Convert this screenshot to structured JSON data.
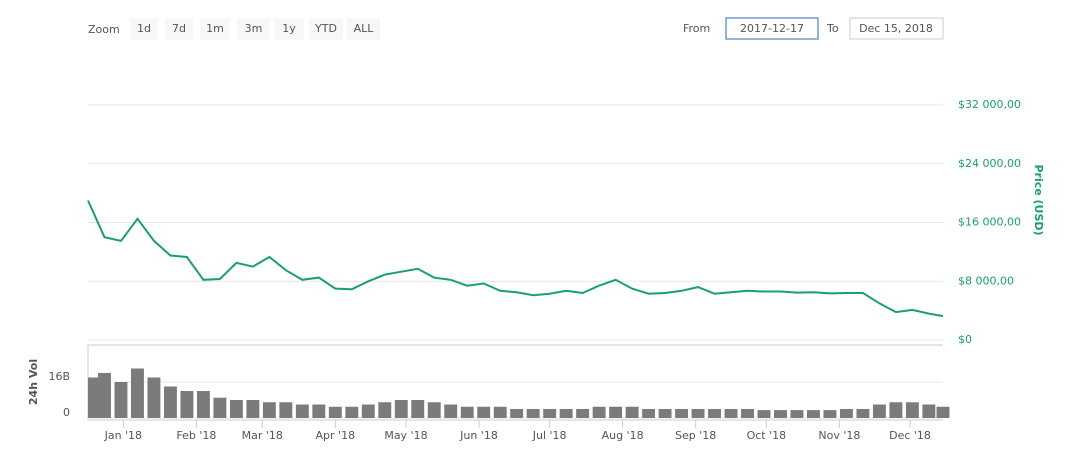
{
  "range_selector": {
    "zoom_label": "Zoom",
    "buttons": [
      "1d",
      "7d",
      "1m",
      "3m",
      "1y",
      "YTD",
      "ALL"
    ],
    "from_label": "From",
    "from": "2017-12-17",
    "to_label": "To",
    "to": "Dec 15, 2018"
  },
  "chart_data": [
    {
      "type": "line",
      "y_label": "Price (USD)",
      "color": "#1a9f73",
      "grid": true,
      "x": [
        "2017-12-17",
        "2017-12-24",
        "2017-12-31",
        "2018-01-07",
        "2018-01-14",
        "2018-01-21",
        "2018-01-28",
        "2018-02-04",
        "2018-02-11",
        "2018-02-18",
        "2018-02-25",
        "2018-03-04",
        "2018-03-11",
        "2018-03-18",
        "2018-03-25",
        "2018-04-01",
        "2018-04-08",
        "2018-04-15",
        "2018-04-22",
        "2018-04-29",
        "2018-05-06",
        "2018-05-13",
        "2018-05-20",
        "2018-05-27",
        "2018-06-03",
        "2018-06-10",
        "2018-06-17",
        "2018-06-24",
        "2018-07-01",
        "2018-07-08",
        "2018-07-15",
        "2018-07-22",
        "2018-07-29",
        "2018-08-05",
        "2018-08-12",
        "2018-08-19",
        "2018-08-26",
        "2018-09-02",
        "2018-09-09",
        "2018-09-16",
        "2018-09-23",
        "2018-09-30",
        "2018-10-07",
        "2018-10-14",
        "2018-10-21",
        "2018-10-28",
        "2018-11-04",
        "2018-11-11",
        "2018-11-18",
        "2018-11-25",
        "2018-12-02",
        "2018-12-09",
        "2018-12-15"
      ],
      "values": [
        19000,
        14000,
        13500,
        16500,
        13500,
        11500,
        11300,
        8200,
        8300,
        10500,
        10000,
        11300,
        9500,
        8200,
        8500,
        7000,
        6900,
        8000,
        8900,
        9300,
        9700,
        8500,
        8200,
        7400,
        7700,
        6700,
        6500,
        6100,
        6300,
        6700,
        6400,
        7400,
        8200,
        7000,
        6300,
        6400,
        6700,
        7200,
        6300,
        6500,
        6700,
        6600,
        6600,
        6450,
        6500,
        6350,
        6400,
        6400,
        5000,
        3800,
        4100,
        3600,
        3250
      ],
      "xlim": [
        "2017-12-17",
        "2018-12-15"
      ],
      "ylim": [
        0,
        32000
      ],
      "yticks": [
        {
          "value": 0,
          "label": "$0"
        },
        {
          "value": 8000,
          "label": "$8 000,00"
        },
        {
          "value": 16000,
          "label": "$16 000,00"
        },
        {
          "value": 24000,
          "label": "$24 000,00"
        },
        {
          "value": 32000,
          "label": "$32 000,00"
        }
      ]
    },
    {
      "type": "bar",
      "y_label": "24h Vol",
      "color": "#7b7b7b",
      "grid": true,
      "x": [
        "2017-12-17",
        "2017-12-24",
        "2017-12-31",
        "2018-01-07",
        "2018-01-14",
        "2018-01-21",
        "2018-01-28",
        "2018-02-04",
        "2018-02-11",
        "2018-02-18",
        "2018-02-25",
        "2018-03-04",
        "2018-03-11",
        "2018-03-18",
        "2018-03-25",
        "2018-04-01",
        "2018-04-08",
        "2018-04-15",
        "2018-04-22",
        "2018-04-29",
        "2018-05-06",
        "2018-05-13",
        "2018-05-20",
        "2018-05-27",
        "2018-06-03",
        "2018-06-10",
        "2018-06-17",
        "2018-06-24",
        "2018-07-01",
        "2018-07-08",
        "2018-07-15",
        "2018-07-22",
        "2018-07-29",
        "2018-08-05",
        "2018-08-12",
        "2018-08-19",
        "2018-08-26",
        "2018-09-02",
        "2018-09-09",
        "2018-09-16",
        "2018-09-23",
        "2018-09-30",
        "2018-10-07",
        "2018-10-14",
        "2018-10-21",
        "2018-10-28",
        "2018-11-04",
        "2018-11-11",
        "2018-11-18",
        "2018-11-25",
        "2018-12-02",
        "2018-12-09",
        "2018-12-15"
      ],
      "values": [
        18000000000,
        20000000000,
        16000000000,
        22000000000,
        18000000000,
        14000000000,
        12000000000,
        12000000000,
        9000000000,
        8000000000,
        8000000000,
        7000000000,
        7000000000,
        6000000000,
        6000000000,
        5000000000,
        5000000000,
        6000000000,
        7000000000,
        8000000000,
        8000000000,
        7000000000,
        6000000000,
        5000000000,
        5000000000,
        5000000000,
        4000000000,
        4000000000,
        4000000000,
        4000000000,
        4000000000,
        5000000000,
        5000000000,
        5000000000,
        4000000000,
        4000000000,
        4000000000,
        4000000000,
        4000000000,
        4000000000,
        4000000000,
        3500000000,
        3500000000,
        3500000000,
        3500000000,
        3500000000,
        4000000000,
        4000000000,
        6000000000,
        7000000000,
        7000000000,
        6000000000,
        5000000000
      ],
      "xlim": [
        "2017-12-17",
        "2018-12-15"
      ],
      "xticks": [
        {
          "value": "2018-01-01",
          "label": "Jan '18"
        },
        {
          "value": "2018-02-01",
          "label": "Feb '18"
        },
        {
          "value": "2018-03-01",
          "label": "Mar '18"
        },
        {
          "value": "2018-04-01",
          "label": "Apr '18"
        },
        {
          "value": "2018-05-01",
          "label": "May '18"
        },
        {
          "value": "2018-06-01",
          "label": "Jun '18"
        },
        {
          "value": "2018-07-01",
          "label": "Jul '18"
        },
        {
          "value": "2018-08-01",
          "label": "Aug '18"
        },
        {
          "value": "2018-09-01",
          "label": "Sep '18"
        },
        {
          "value": "2018-10-01",
          "label": "Oct '18"
        },
        {
          "value": "2018-11-01",
          "label": "Nov '18"
        },
        {
          "value": "2018-12-01",
          "label": "Dec '18"
        }
      ],
      "ylim": [
        0,
        32000000000
      ],
      "yticks": [
        0,
        {
          "value": 16000000000,
          "label": "16B"
        }
      ]
    }
  ]
}
